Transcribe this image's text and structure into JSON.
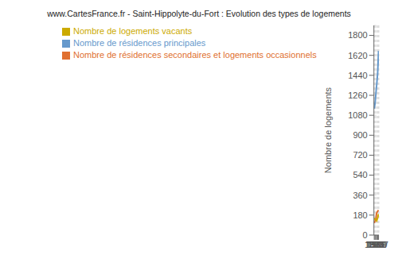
{
  "chart_data": {
    "type": "line",
    "title": "www.CartesFrance.fr - Saint-Hippolyte-du-Fort : Evolution des types de logements",
    "ylabel": "Nombre de logements",
    "x": [
      1968,
      1975,
      1982,
      1990,
      1999,
      2007
    ],
    "xlim": [
      1965,
      2010
    ],
    "xticks": [
      1968,
      1975,
      1982,
      1990,
      1999,
      2007
    ],
    "ylim": [
      0,
      1890
    ],
    "yticks": [
      0,
      180,
      360,
      540,
      720,
      900,
      1080,
      1260,
      1440,
      1620,
      1800
    ],
    "grid": true,
    "legend": "upper left",
    "series": [
      {
        "name": "Nombre de résidences principales",
        "color": "#6699cc",
        "values": [
          1140,
          1185,
          1265,
          1355,
          1465,
          1660
        ]
      },
      {
        "name": "Nombre de résidences secondaires et logements occasionnels",
        "color": "#e07030",
        "values": [
          108,
          128,
          138,
          200,
          215,
          225
        ]
      },
      {
        "name": "Nombre de logements vacants",
        "color": "#ccaa00",
        "values": [
          155,
          140,
          138,
          128,
          155,
          190
        ]
      }
    ]
  }
}
